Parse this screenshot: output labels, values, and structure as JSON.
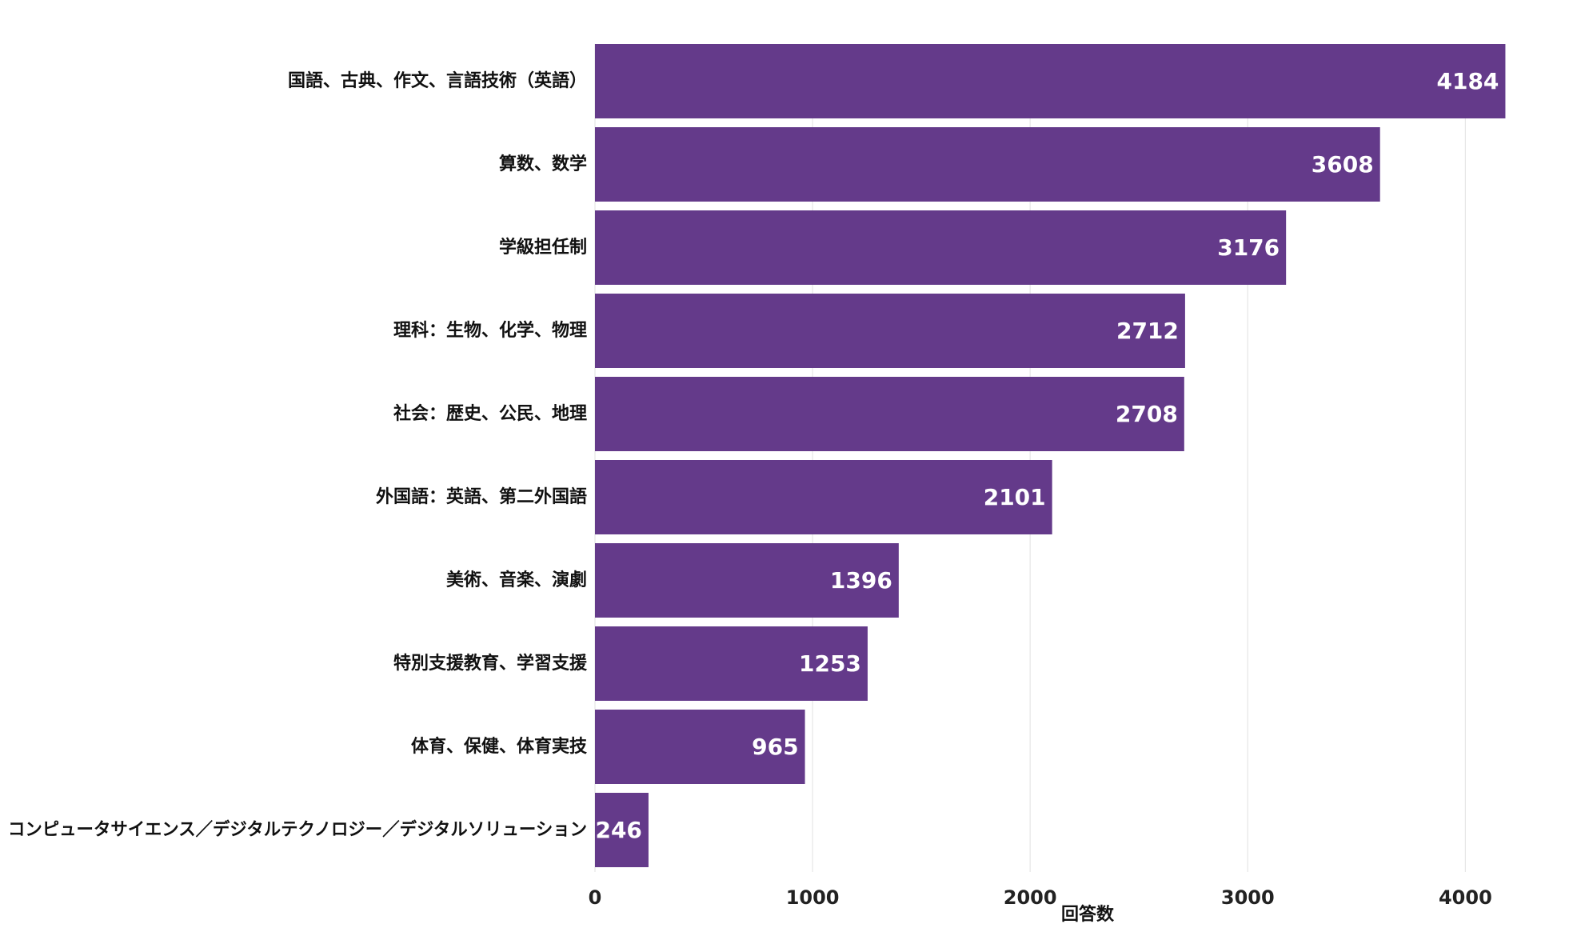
{
  "chart_data": {
    "type": "bar",
    "orientation": "horizontal",
    "categories": [
      "国語、古典、作文、言語技術（英語）",
      "算数、数学",
      "学級担任制",
      "理科：生物、化学、物理",
      "社会：歴史、公民、地理",
      "外国語：英語、第二外国語",
      "美術、音楽、演劇",
      "特別支援教育、学習支援",
      "体育、保健、体育実技",
      "コンピュータサイエンス／デジタルテクノロジー／デジタルソリューション"
    ],
    "values": [
      4184,
      3608,
      3176,
      2712,
      2708,
      2101,
      1396,
      1253,
      965,
      246
    ],
    "value_labels": [
      "4184",
      "3608",
      "3176",
      "2712",
      "2708",
      "2101",
      "1396",
      "1253",
      "965",
      "246"
    ],
    "xlabel": "回答数",
    "ylabel": "",
    "title": "",
    "xlim": [
      0,
      4300
    ],
    "xticks": [
      0,
      1000,
      2000,
      3000,
      4000
    ],
    "xtick_labels": [
      "0",
      "1000",
      "2000",
      "3000",
      "4000"
    ],
    "grid": "vertical",
    "legend": "none",
    "bar_color": "#643a8a",
    "grid_color": "#e6e6e6",
    "value_label_color": "#ffffff"
  }
}
